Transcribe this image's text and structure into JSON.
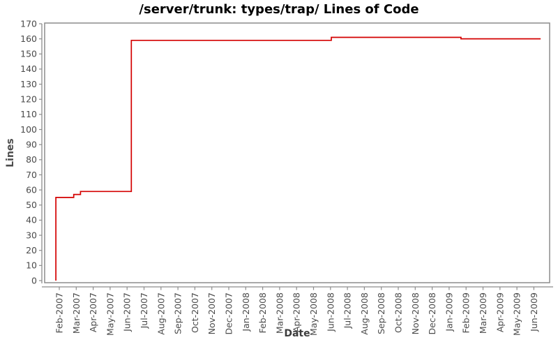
{
  "chart_data": {
    "type": "line",
    "subtype": "step",
    "title": "/server/trunk: types/trap/ Lines of Code",
    "xlabel": "Date",
    "ylabel": "Lines",
    "ylim": [
      0,
      170
    ],
    "ytick_interval": 10,
    "grid": false,
    "legend_position": "none",
    "x_categories": [
      "Feb-2007",
      "Mar-2007",
      "Apr-2007",
      "May-2007",
      "Jun-2007",
      "Jul-2007",
      "Aug-2007",
      "Sep-2007",
      "Oct-2007",
      "Nov-2007",
      "Dec-2007",
      "Jan-2008",
      "Feb-2008",
      "Mar-2008",
      "Apr-2008",
      "May-2008",
      "Jun-2008",
      "Jul-2008",
      "Aug-2008",
      "Sep-2008",
      "Oct-2008",
      "Nov-2008",
      "Dec-2008",
      "Jan-2009",
      "Feb-2009",
      "Mar-2009",
      "Apr-2009",
      "May-2009",
      "Jun-2009"
    ],
    "x_unit": "months since Feb-2007 tick",
    "series": [
      {
        "name": "lines of code",
        "color": "#d40000",
        "points_month_value": [
          [
            -0.2,
            0
          ],
          [
            -0.2,
            55
          ],
          [
            0.85,
            55
          ],
          [
            0.85,
            57
          ],
          [
            1.25,
            57
          ],
          [
            1.25,
            59
          ],
          [
            4.25,
            59
          ],
          [
            4.25,
            159
          ],
          [
            16.05,
            159
          ],
          [
            16.05,
            161
          ],
          [
            23.7,
            161
          ],
          [
            23.7,
            160
          ],
          [
            28.4,
            160
          ]
        ],
        "events": [
          {
            "date": "Feb-2007",
            "value": 55
          },
          {
            "date": "Mar-2007",
            "value": 57
          },
          {
            "date": "Mar-2007",
            "value": 59
          },
          {
            "date": "Jun-2007",
            "value": 159
          },
          {
            "date": "Jun-2008",
            "value": 161
          },
          {
            "date": "Feb-2009",
            "value": 160
          }
        ]
      }
    ],
    "colors": {
      "line": "#d40000",
      "axis": "#8c8c8c",
      "frame": "#8c8c8c",
      "tick_label": "#4a4a4a",
      "title": "#000000"
    }
  }
}
